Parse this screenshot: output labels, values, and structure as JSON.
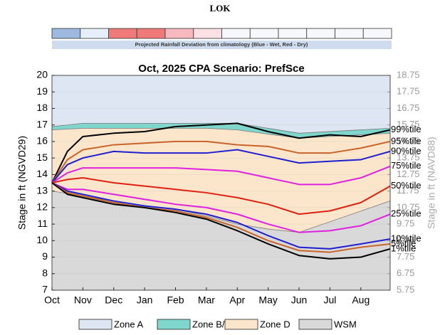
{
  "chart_data": {
    "type": "line",
    "header": "LOK",
    "rainfall": {
      "caption": "Projected Rainfall Deviation from climatology (Blue - Wet, Red - Dry)",
      "colors": [
        "#9db9e0",
        "#e6eefa",
        "#f07a7a",
        "#f07a7a",
        "#f7b9c0",
        "#fbe0e4",
        "#f6f8fc",
        "#f6f8fc",
        "#f6f8fc",
        "#f6f8fc",
        "#f6f8fc",
        "#f6f8fc"
      ]
    },
    "title": "Oct, 2025  CPA Scenario: PrefSce",
    "ylabel": "Stage in ft (NGVD29)",
    "y2label": "Stage in ft (NAVD88)",
    "xlim": [
      0,
      10.95
    ],
    "xticks": [
      {
        "value": 0,
        "label": "Oct"
      },
      {
        "value": 1,
        "label": "Nov"
      },
      {
        "value": 2,
        "label": "Dec"
      },
      {
        "value": 3,
        "label": "Jan"
      },
      {
        "value": 4,
        "label": "Feb"
      },
      {
        "value": 5,
        "label": "Mar"
      },
      {
        "value": 6,
        "label": "Apr"
      },
      {
        "value": 7,
        "label": "May"
      },
      {
        "value": 8,
        "label": "Jun"
      },
      {
        "value": 9,
        "label": "Jul"
      },
      {
        "value": 10,
        "label": "Aug"
      }
    ],
    "ylim": [
      7,
      20
    ],
    "yticks": [
      7,
      8,
      9,
      10,
      11,
      12,
      13,
      14,
      15,
      16,
      17,
      18,
      19,
      20
    ],
    "y2lim": [
      5.75,
      18.75
    ],
    "y2ticks": [
      5.75,
      6.75,
      7.75,
      8.75,
      9.75,
      10.75,
      11.75,
      12.75,
      13.75,
      14.75,
      15.75,
      16.75,
      17.75,
      18.75
    ],
    "grid": true,
    "zones": [
      {
        "name": "Zone A",
        "color": "#dde6f2",
        "x": [
          0,
          1,
          2,
          3,
          4,
          5,
          6,
          7,
          8,
          10.95
        ],
        "values": [
          20,
          20,
          20,
          20,
          20,
          20,
          20,
          20,
          20,
          20
        ]
      },
      {
        "name": "Zone B/C",
        "color": "#7fd6cc",
        "x": [
          0,
          1,
          2,
          3,
          4,
          5,
          6,
          7,
          8,
          10.95
        ],
        "values": [
          16.9,
          17.1,
          17.1,
          17.1,
          17.1,
          17.1,
          17.1,
          16.8,
          16.5,
          16.8
        ]
      },
      {
        "name": "Zone D",
        "color": "#fbe6cc",
        "x": [
          0,
          1,
          2,
          3,
          4,
          5,
          6,
          7,
          8,
          10.95
        ],
        "values": [
          16.7,
          16.8,
          16.8,
          16.8,
          16.8,
          16.8,
          16.7,
          16.45,
          16.2,
          16.5
        ]
      },
      {
        "name": "WSM",
        "color": "#d9d9d9",
        "x": [
          0,
          1,
          2,
          3,
          4,
          5,
          6,
          7,
          8,
          10.95
        ],
        "values": [
          13.0,
          12.7,
          12.4,
          12.1,
          11.9,
          11.5,
          11.0,
          10.7,
          10.5,
          12.4
        ]
      }
    ],
    "x": [
      0,
      0.5,
      1,
      2,
      3,
      4,
      5,
      6,
      7,
      8,
      9,
      10,
      10.95
    ],
    "series": [
      {
        "name": "99%tile",
        "color": "#000000",
        "values": [
          13.5,
          15.4,
          16.3,
          16.5,
          16.6,
          16.9,
          17.0,
          17.1,
          16.6,
          16.2,
          16.4,
          16.3,
          16.7
        ]
      },
      {
        "name": "95%tile",
        "color": "#c8642a",
        "values": [
          13.5,
          14.9,
          15.5,
          15.8,
          15.9,
          16.0,
          16.0,
          15.8,
          15.7,
          15.3,
          15.3,
          15.6,
          16.0
        ]
      },
      {
        "name": "90%tile",
        "color": "#1f1fd0",
        "values": [
          13.5,
          14.6,
          15.0,
          15.4,
          15.3,
          15.3,
          15.3,
          15.5,
          15.1,
          14.7,
          14.8,
          14.9,
          15.4
        ]
      },
      {
        "name": "75%tile",
        "color": "#e020e0",
        "values": [
          13.5,
          14.1,
          14.4,
          14.4,
          14.4,
          14.4,
          14.3,
          14.2,
          13.8,
          13.4,
          13.4,
          13.8,
          14.5
        ]
      },
      {
        "name": "50%tile",
        "color": "#e02010",
        "values": [
          13.5,
          13.7,
          13.8,
          13.5,
          13.3,
          13.1,
          12.9,
          12.6,
          12.2,
          11.6,
          11.8,
          12.3,
          13.3
        ]
      },
      {
        "name": "25%tile",
        "color": "#e020e0",
        "values": [
          13.5,
          13.1,
          13.1,
          12.8,
          12.5,
          12.2,
          12.0,
          11.6,
          11.0,
          10.5,
          10.6,
          10.9,
          11.6
        ]
      },
      {
        "name": "10%tile",
        "color": "#1f1fd0",
        "values": [
          13.5,
          13.0,
          12.8,
          12.4,
          12.1,
          11.9,
          11.6,
          11.1,
          10.3,
          9.6,
          9.5,
          9.8,
          10.1
        ]
      },
      {
        "name": "5%tile",
        "color": "#c8642a",
        "values": [
          13.5,
          12.9,
          12.7,
          12.3,
          12.0,
          11.8,
          11.4,
          10.8,
          10.0,
          9.4,
          9.3,
          9.6,
          9.8
        ]
      },
      {
        "name": "1%tile",
        "color": "#000000",
        "values": [
          13.5,
          12.8,
          12.6,
          12.2,
          12.0,
          11.7,
          11.3,
          10.6,
          9.8,
          9.1,
          8.9,
          9.0,
          9.5
        ]
      }
    ]
  }
}
